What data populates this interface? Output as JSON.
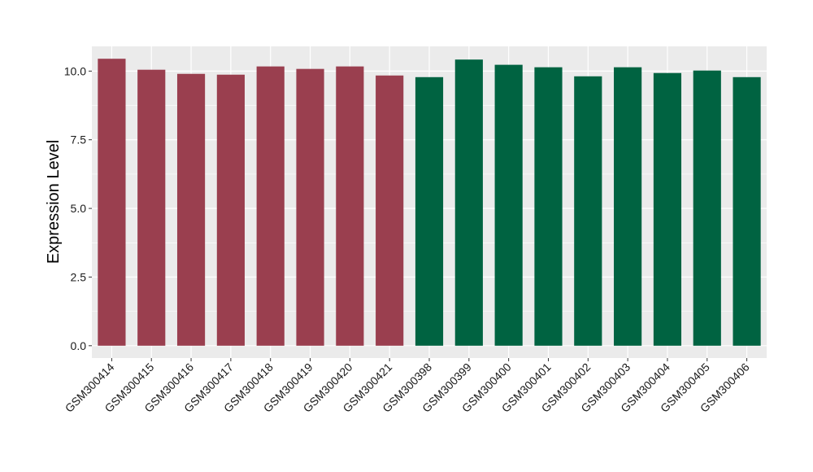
{
  "chart_data": {
    "type": "bar",
    "title": "",
    "xlabel": "",
    "ylabel": "Expression Level",
    "ylim": [
      -0.45,
      10.9
    ],
    "yticks": [
      0.0,
      2.5,
      5.0,
      7.5,
      10.0
    ],
    "ytick_labels": [
      "0.0",
      "2.5",
      "5.0",
      "7.5",
      "10.0"
    ],
    "grid": true,
    "legend": "none",
    "categories": [
      "GSM300414",
      "GSM300415",
      "GSM300416",
      "GSM300417",
      "GSM300418",
      "GSM300419",
      "GSM300420",
      "GSM300421",
      "GSM300398",
      "GSM300399",
      "GSM300400",
      "GSM300401",
      "GSM300402",
      "GSM300403",
      "GSM300404",
      "GSM300405",
      "GSM300406"
    ],
    "values": [
      10.45,
      10.05,
      9.9,
      9.87,
      10.17,
      10.08,
      10.17,
      9.84,
      9.78,
      10.42,
      10.23,
      10.14,
      9.81,
      10.14,
      9.93,
      10.02,
      9.78
    ],
    "bar_colors": [
      "#9a3f4f",
      "#9a3f4f",
      "#9a3f4f",
      "#9a3f4f",
      "#9a3f4f",
      "#9a3f4f",
      "#9a3f4f",
      "#9a3f4f",
      "#006341",
      "#006341",
      "#006341",
      "#006341",
      "#006341",
      "#006341",
      "#006341",
      "#006341",
      "#006341"
    ],
    "panel_background": "#ebebeb",
    "grid_color": "#ffffff"
  }
}
